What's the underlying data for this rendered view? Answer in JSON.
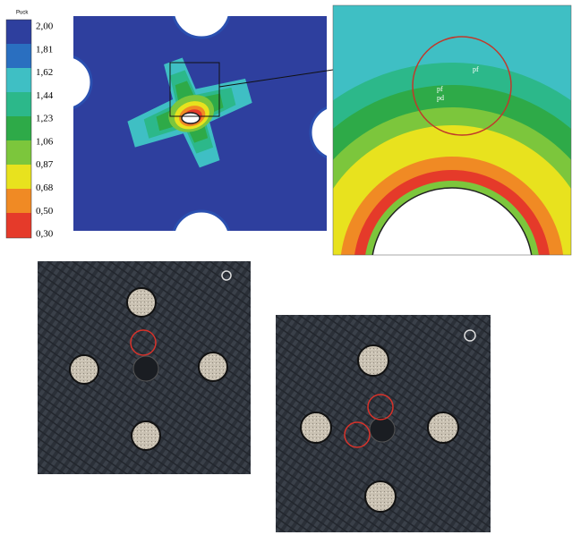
{
  "legend": {
    "title": "Puck",
    "labels": [
      "2,00",
      "1,81",
      "1,62",
      "1,44",
      "1,23",
      "1,06",
      "0,87",
      "0,68",
      "0,50",
      "0,30"
    ]
  },
  "zoom": {
    "labels": [
      "pf",
      "pf",
      "pd"
    ]
  }
}
